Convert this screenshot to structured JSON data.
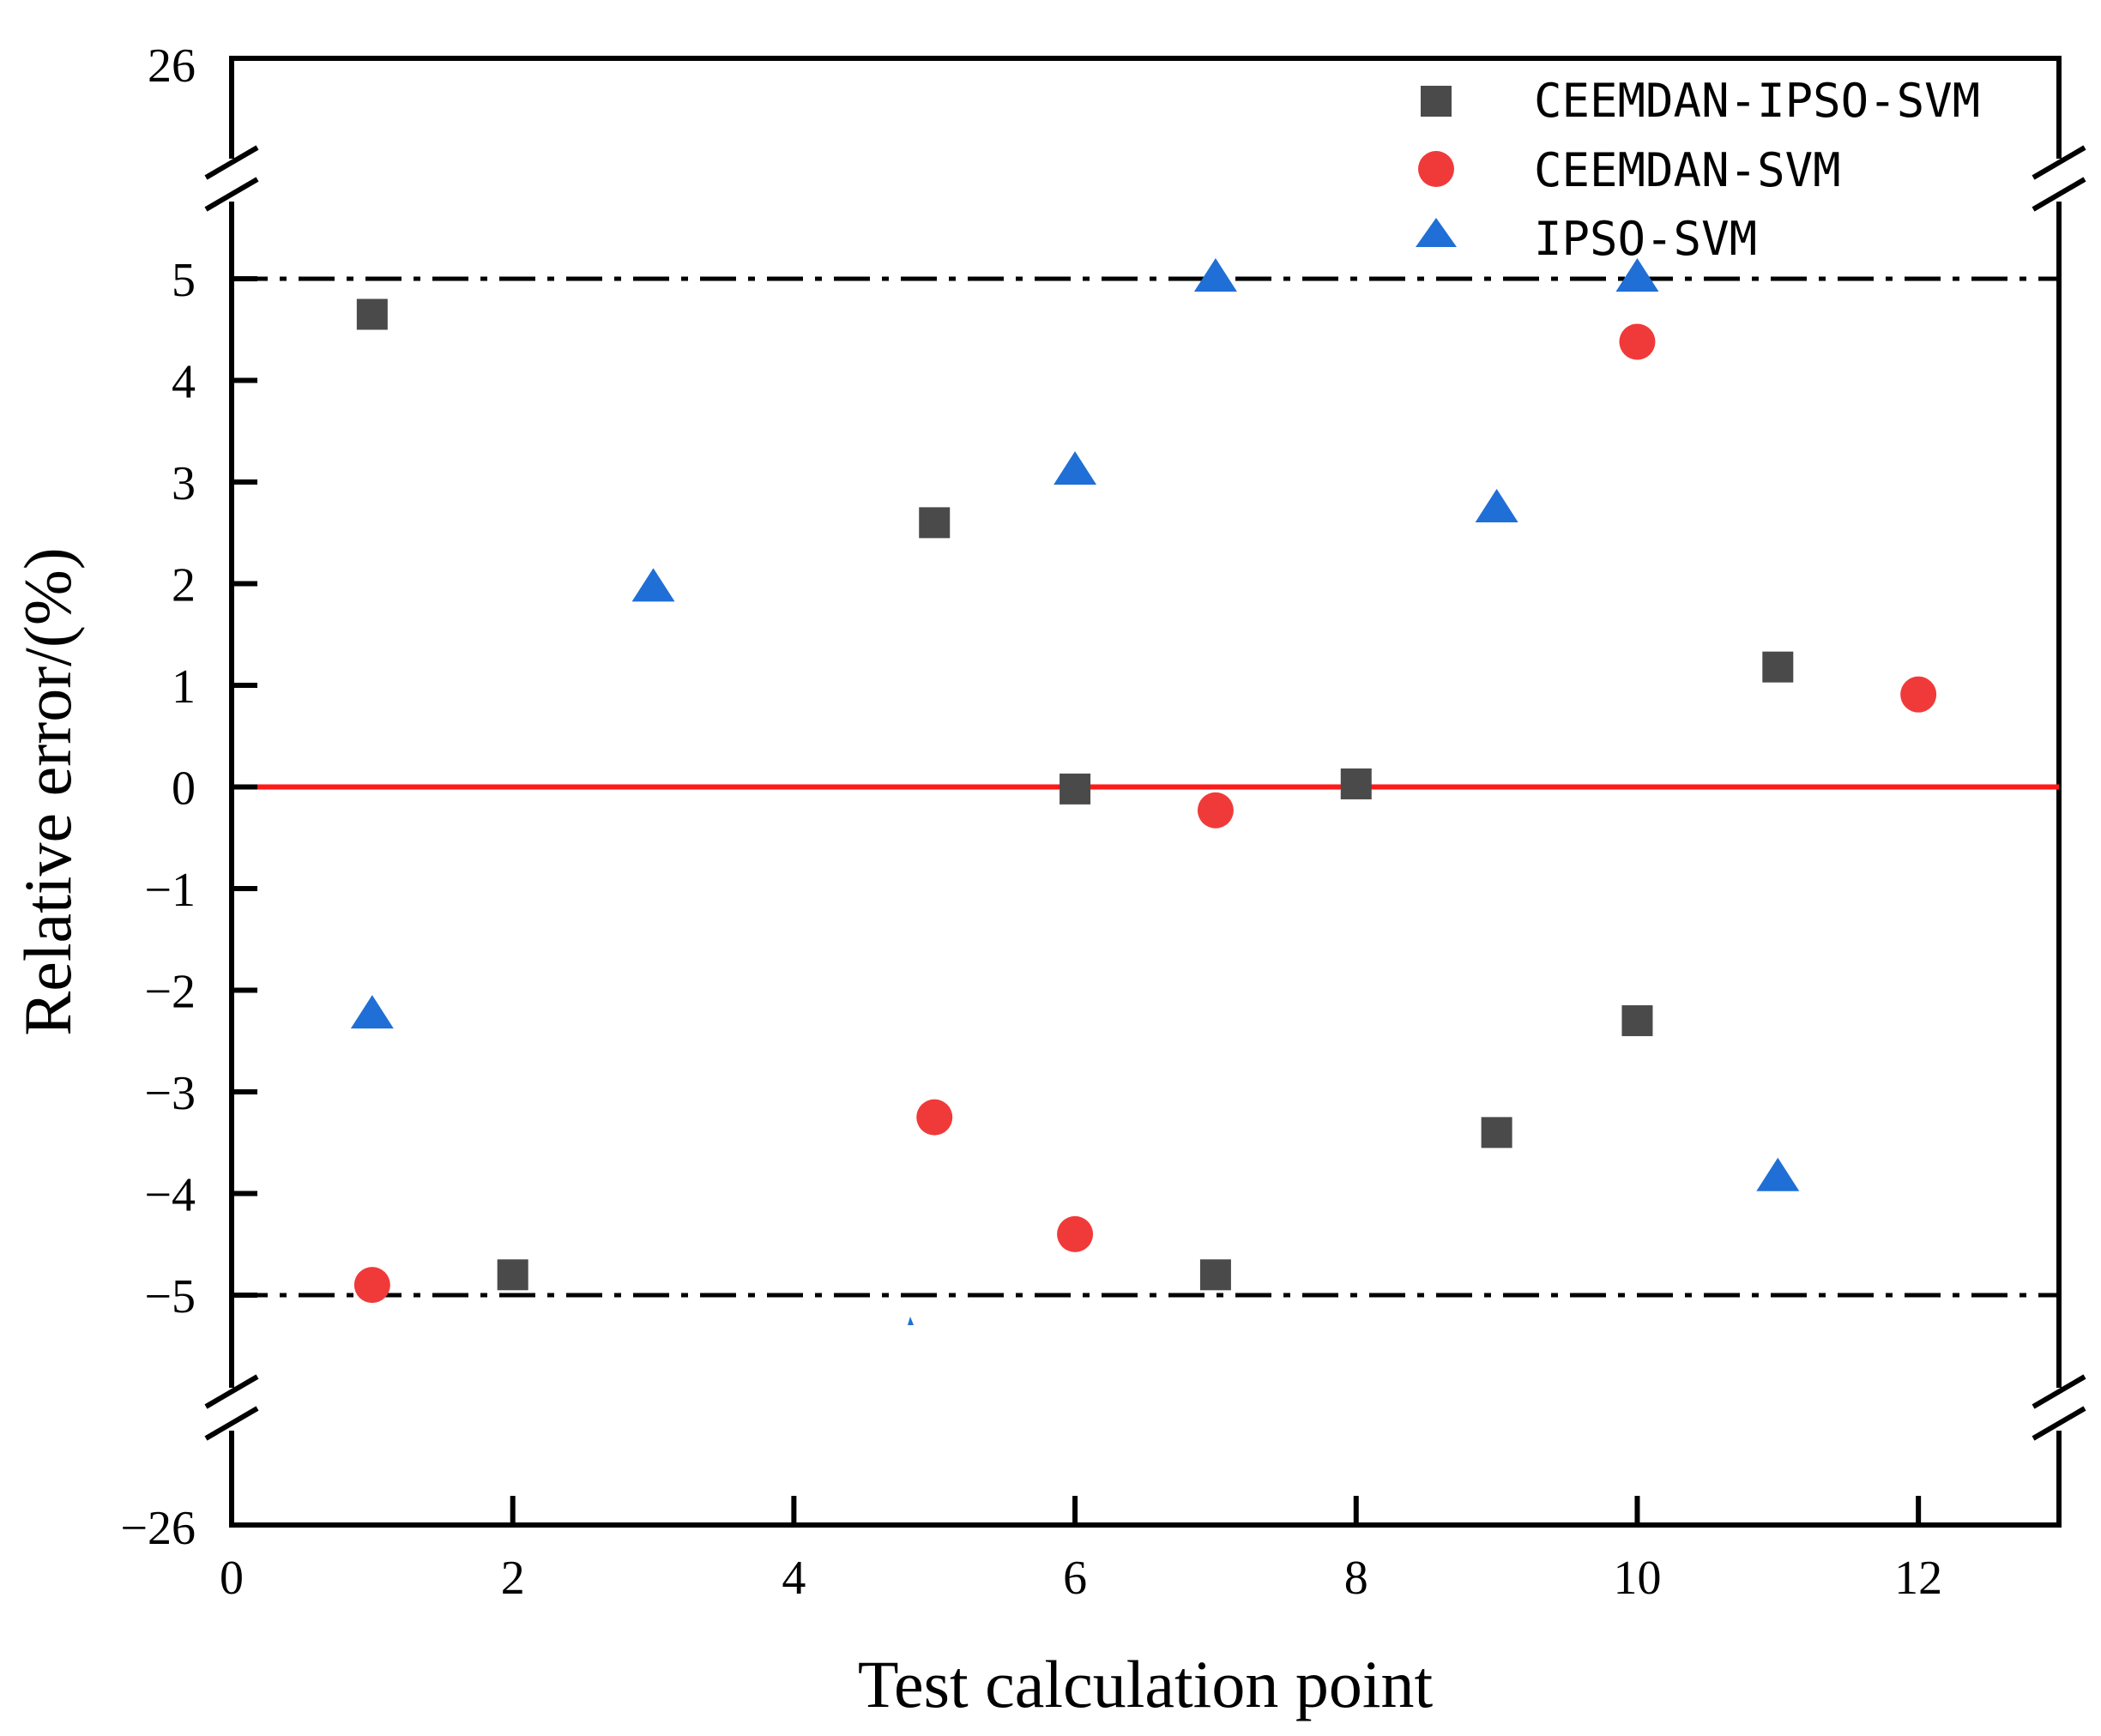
{
  "chart_data": {
    "type": "scatter",
    "xlabel": "Test calculation point",
    "ylabel": "Relative error/(%)",
    "xlim": [
      0,
      13
    ],
    "ylim_broken": {
      "main": [
        -5.5,
        5.5
      ],
      "top": 26,
      "bottom": -26
    },
    "x_ticks": [
      0,
      2,
      4,
      6,
      8,
      10,
      12
    ],
    "x_tick_labels": [
      "0",
      "2",
      "4",
      "6",
      "8",
      "10",
      "12"
    ],
    "y_ticks": [
      5,
      4,
      3,
      2,
      1,
      0,
      -1,
      -2,
      -3,
      -4,
      -5
    ],
    "y_tick_labels": [
      "5",
      "4",
      "3",
      "2",
      "1",
      "0",
      "−1",
      "−2",
      "−3",
      "−4",
      "−5"
    ],
    "y_break_labels": {
      "top": "26",
      "bottom": "−26"
    },
    "reference_lines": [
      {
        "y": 0,
        "style": "solid",
        "color": "#ff1a1a"
      },
      {
        "y": 5,
        "style": "dashdot",
        "color": "#000000"
      },
      {
        "y": -5,
        "style": "dashdot",
        "color": "#000000"
      }
    ],
    "series": [
      {
        "name": "CEEMDAN-IPSO-SVM",
        "marker": "square",
        "color": "#4a4a4a",
        "points": [
          [
            1,
            4.65
          ],
          [
            2,
            -4.8
          ],
          [
            5,
            2.6
          ],
          [
            6,
            -0.02
          ],
          [
            7,
            -4.8
          ],
          [
            8,
            0.03
          ],
          [
            9,
            -3.4
          ],
          [
            10,
            -2.3
          ],
          [
            11,
            1.18
          ]
        ]
      },
      {
        "name": "CEEMDAN-SVM",
        "marker": "circle",
        "color": "#f03a3a",
        "points": [
          [
            1,
            -4.9
          ],
          [
            5,
            -3.25
          ],
          [
            6,
            -4.4
          ],
          [
            7,
            -0.23
          ],
          [
            10,
            4.38
          ],
          [
            12,
            0.91
          ]
        ]
      },
      {
        "name": "IPSO-SVM",
        "marker": "triangle",
        "color": "#1f6fd6",
        "points": [
          [
            1,
            -2.25
          ],
          [
            3,
            1.95
          ],
          [
            6,
            3.1
          ],
          [
            7,
            5.0
          ],
          [
            9,
            2.73
          ],
          [
            10,
            5.0
          ],
          [
            11,
            -3.85
          ]
        ]
      }
    ],
    "legend_position": "top-right"
  }
}
